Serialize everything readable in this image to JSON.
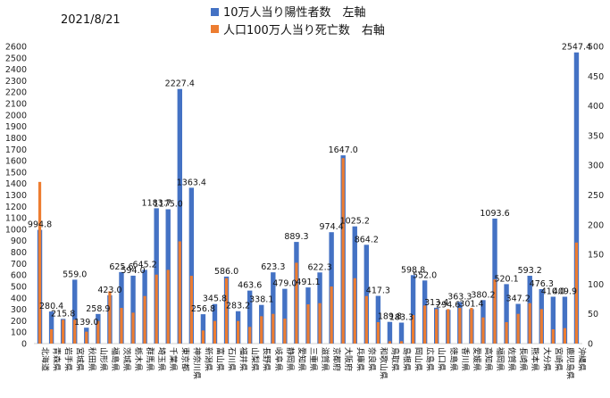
{
  "date": "2021/8/21",
  "legend": [
    {
      "label": "10万人当り陽性者数　左軸",
      "color": "#4472C4"
    },
    {
      "label": "人口100万人当り死亡数　右軸",
      "color": "#ED7D31"
    }
  ],
  "chart_data": {
    "type": "bar",
    "title": "",
    "left_axis": {
      "min": 0,
      "max": 2600,
      "step": 100
    },
    "right_axis": {
      "min": 0,
      "max": 500,
      "step": 50
    },
    "legend_position": "top",
    "grid": false,
    "categories": [
      "北海道",
      "青森県",
      "岩手県",
      "宮城県",
      "秋田県",
      "山形県",
      "福島県",
      "茨城県",
      "栃木県",
      "群馬県",
      "埼玉県",
      "千葉県",
      "東京都",
      "神奈川県",
      "新潟県",
      "富山県",
      "石川県",
      "福井県",
      "山梨県",
      "長野県",
      "岐阜県",
      "静岡県",
      "愛知県",
      "三重県",
      "滋賀県",
      "京都府",
      "大阪府",
      "兵庫県",
      "奈良県",
      "和歌山県",
      "鳥取県",
      "島根県",
      "岡山県",
      "広島県",
      "山口県",
      "徳島県",
      "香川県",
      "愛媛県",
      "高知県",
      "福岡県",
      "佐賀県",
      "長崎県",
      "熊本県",
      "大分県",
      "宮崎県",
      "鹿児島県",
      "沖縄県"
    ],
    "series": [
      {
        "name": "10万人当り陽性者数　左軸",
        "axis": "left",
        "color": "#4472C4",
        "values": [
          994.8,
          280.4,
          215.8,
          559.0,
          139.0,
          258.9,
          423.0,
          625.6,
          594.0,
          645.2,
          1183.7,
          1175.0,
          2227.4,
          1363.4,
          256.8,
          345.8,
          586.0,
          283.2,
          463.6,
          338.1,
          623.3,
          479.0,
          889.3,
          491.1,
          622.3,
          974.4,
          1647.0,
          1025.2,
          864.2,
          417.3,
          189.8,
          183.3,
          598.8,
          552.0,
          313.4,
          294.6,
          363.3,
          301.4,
          380.2,
          1093.6,
          520.1,
          347.2,
          593.2,
          476.3,
          410.0,
          409.9,
          2547.4
        ],
        "labels": [
          "994.8",
          "280.4",
          "215.8",
          "559.0",
          "139.0",
          "258.9",
          "423.0",
          "625.6",
          "594.0",
          "645.2",
          "1183.7",
          "1175.0",
          "2227.4",
          "1363.4",
          "256.8",
          "345.8",
          "586.0",
          "283.2",
          "463.6",
          "338.1",
          "623.3",
          "479.0",
          "889.3",
          "491.1",
          "622.3",
          "974.4",
          "1647.0",
          "1025.2",
          "864.2",
          "417.3",
          "189.8",
          "183.3",
          "598.8",
          "552.0",
          "313.4",
          "294.6",
          "363.3",
          "301.4",
          "380.2",
          "1093.6",
          "520.1",
          "347.2",
          "593.2",
          "476.3",
          "410.0",
          "409.9",
          "2547.4"
        ]
      },
      {
        "name": "人口100万人当り死亡数　右軸",
        "axis": "right",
        "color": "#ED7D31",
        "values": [
          272,
          24,
          40,
          40,
          20,
          38,
          88,
          60,
          52,
          80,
          116,
          124,
          172,
          114,
          22,
          38,
          110,
          38,
          28,
          46,
          50,
          42,
          136,
          66,
          68,
          96,
          312,
          110,
          80,
          36,
          4,
          4,
          48,
          64,
          58,
          58,
          60,
          60,
          44,
          108,
          36,
          50,
          68,
          58,
          24,
          26,
          170
        ]
      }
    ]
  }
}
